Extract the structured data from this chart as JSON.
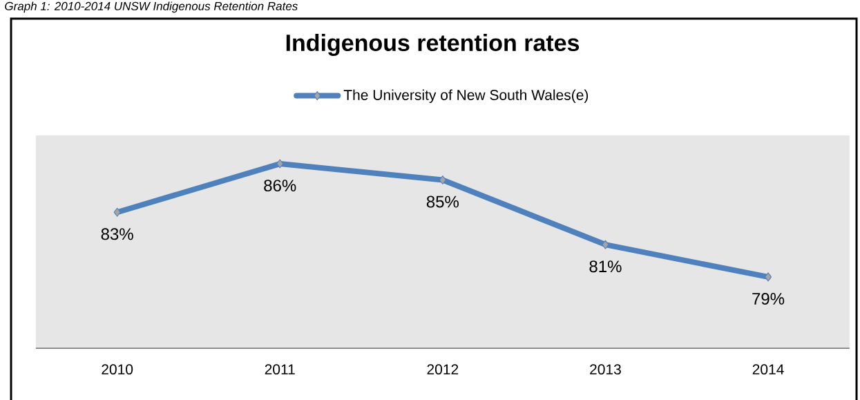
{
  "chart_data": {
    "type": "line",
    "title": "Indigenous retention rates",
    "annotations": [
      "Graph 1: 2010-2014 UNSW Indigenous Retention Rates"
    ],
    "categories": [
      "2010",
      "2011",
      "2012",
      "2013",
      "2014"
    ],
    "series": [
      {
        "name": "The University of New South Wales(e)",
        "color": "#4f81bd",
        "values": [
          83,
          86,
          85,
          81,
          79
        ],
        "value_labels": [
          "83%",
          "86%",
          "85%",
          "81%",
          "79%"
        ]
      }
    ],
    "legend": "top",
    "marker": "diamond",
    "line_style": "solid"
  }
}
